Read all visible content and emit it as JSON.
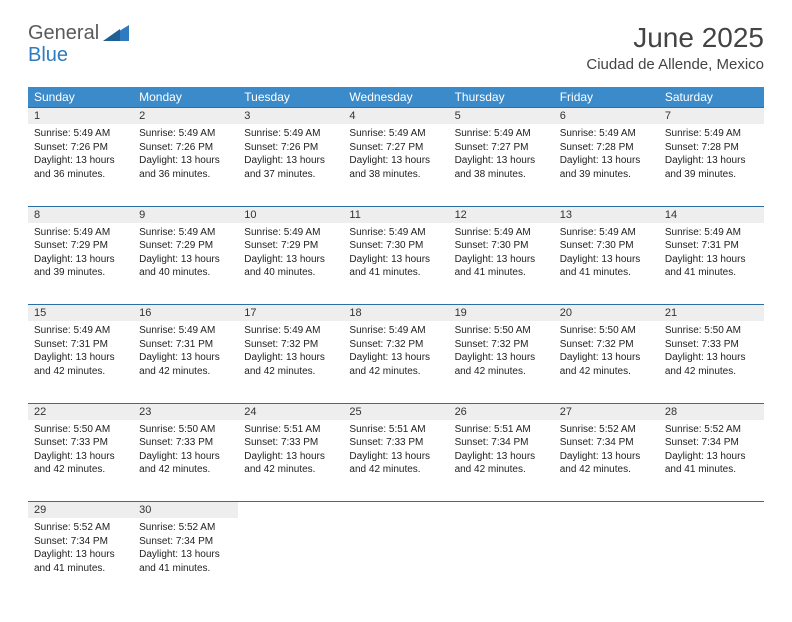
{
  "logo": {
    "text1": "General",
    "text2": "Blue"
  },
  "title": "June 2025",
  "location": "Ciudad de Allende, Mexico",
  "colors": {
    "header_bg": "#3b8aca",
    "header_text": "#ffffff",
    "daynum_bg": "#eeeeee",
    "rule": "#2e6fa3",
    "logo_gray": "#5a5a5a",
    "logo_blue": "#2e7bbf"
  },
  "weekdays": [
    "Sunday",
    "Monday",
    "Tuesday",
    "Wednesday",
    "Thursday",
    "Friday",
    "Saturday"
  ],
  "weeks": [
    [
      {
        "n": "1",
        "sr": "5:49 AM",
        "ss": "7:26 PM",
        "dl": "13 hours and 36 minutes."
      },
      {
        "n": "2",
        "sr": "5:49 AM",
        "ss": "7:26 PM",
        "dl": "13 hours and 36 minutes."
      },
      {
        "n": "3",
        "sr": "5:49 AM",
        "ss": "7:26 PM",
        "dl": "13 hours and 37 minutes."
      },
      {
        "n": "4",
        "sr": "5:49 AM",
        "ss": "7:27 PM",
        "dl": "13 hours and 38 minutes."
      },
      {
        "n": "5",
        "sr": "5:49 AM",
        "ss": "7:27 PM",
        "dl": "13 hours and 38 minutes."
      },
      {
        "n": "6",
        "sr": "5:49 AM",
        "ss": "7:28 PM",
        "dl": "13 hours and 39 minutes."
      },
      {
        "n": "7",
        "sr": "5:49 AM",
        "ss": "7:28 PM",
        "dl": "13 hours and 39 minutes."
      }
    ],
    [
      {
        "n": "8",
        "sr": "5:49 AM",
        "ss": "7:29 PM",
        "dl": "13 hours and 39 minutes."
      },
      {
        "n": "9",
        "sr": "5:49 AM",
        "ss": "7:29 PM",
        "dl": "13 hours and 40 minutes."
      },
      {
        "n": "10",
        "sr": "5:49 AM",
        "ss": "7:29 PM",
        "dl": "13 hours and 40 minutes."
      },
      {
        "n": "11",
        "sr": "5:49 AM",
        "ss": "7:30 PM",
        "dl": "13 hours and 41 minutes."
      },
      {
        "n": "12",
        "sr": "5:49 AM",
        "ss": "7:30 PM",
        "dl": "13 hours and 41 minutes."
      },
      {
        "n": "13",
        "sr": "5:49 AM",
        "ss": "7:30 PM",
        "dl": "13 hours and 41 minutes."
      },
      {
        "n": "14",
        "sr": "5:49 AM",
        "ss": "7:31 PM",
        "dl": "13 hours and 41 minutes."
      }
    ],
    [
      {
        "n": "15",
        "sr": "5:49 AM",
        "ss": "7:31 PM",
        "dl": "13 hours and 42 minutes."
      },
      {
        "n": "16",
        "sr": "5:49 AM",
        "ss": "7:31 PM",
        "dl": "13 hours and 42 minutes."
      },
      {
        "n": "17",
        "sr": "5:49 AM",
        "ss": "7:32 PM",
        "dl": "13 hours and 42 minutes."
      },
      {
        "n": "18",
        "sr": "5:49 AM",
        "ss": "7:32 PM",
        "dl": "13 hours and 42 minutes."
      },
      {
        "n": "19",
        "sr": "5:50 AM",
        "ss": "7:32 PM",
        "dl": "13 hours and 42 minutes."
      },
      {
        "n": "20",
        "sr": "5:50 AM",
        "ss": "7:32 PM",
        "dl": "13 hours and 42 minutes."
      },
      {
        "n": "21",
        "sr": "5:50 AM",
        "ss": "7:33 PM",
        "dl": "13 hours and 42 minutes."
      }
    ],
    [
      {
        "n": "22",
        "sr": "5:50 AM",
        "ss": "7:33 PM",
        "dl": "13 hours and 42 minutes."
      },
      {
        "n": "23",
        "sr": "5:50 AM",
        "ss": "7:33 PM",
        "dl": "13 hours and 42 minutes."
      },
      {
        "n": "24",
        "sr": "5:51 AM",
        "ss": "7:33 PM",
        "dl": "13 hours and 42 minutes."
      },
      {
        "n": "25",
        "sr": "5:51 AM",
        "ss": "7:33 PM",
        "dl": "13 hours and 42 minutes."
      },
      {
        "n": "26",
        "sr": "5:51 AM",
        "ss": "7:34 PM",
        "dl": "13 hours and 42 minutes."
      },
      {
        "n": "27",
        "sr": "5:52 AM",
        "ss": "7:34 PM",
        "dl": "13 hours and 42 minutes."
      },
      {
        "n": "28",
        "sr": "5:52 AM",
        "ss": "7:34 PM",
        "dl": "13 hours and 41 minutes."
      }
    ],
    [
      {
        "n": "29",
        "sr": "5:52 AM",
        "ss": "7:34 PM",
        "dl": "13 hours and 41 minutes."
      },
      {
        "n": "30",
        "sr": "5:52 AM",
        "ss": "7:34 PM",
        "dl": "13 hours and 41 minutes."
      },
      null,
      null,
      null,
      null,
      null
    ]
  ],
  "labels": {
    "sunrise": "Sunrise:",
    "sunset": "Sunset:",
    "daylight": "Daylight:"
  }
}
